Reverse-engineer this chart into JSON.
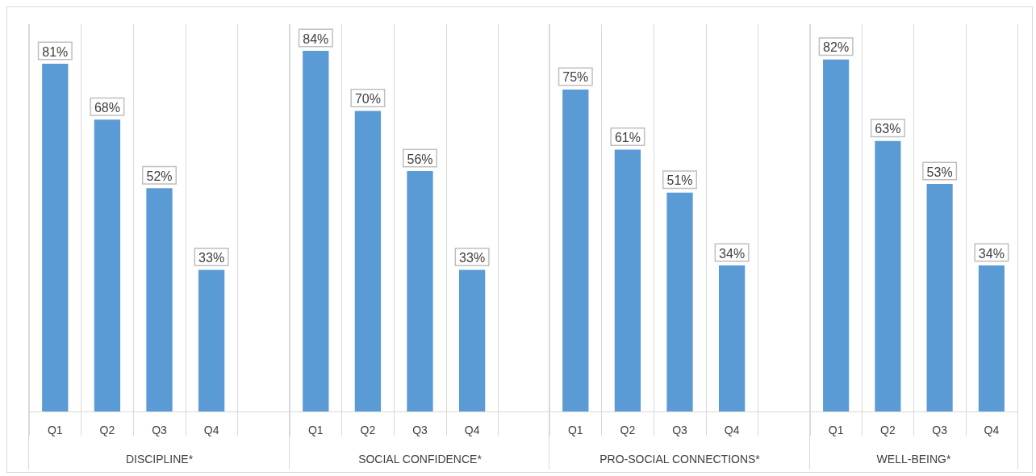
{
  "chart_data": [
    {
      "type": "bar",
      "xlabel": "DISCIPLINE*",
      "categories": [
        "Q1",
        "Q2",
        "Q3",
        "Q4",
        null
      ],
      "values": [
        81,
        68,
        52,
        33,
        null
      ],
      "value_labels": [
        "81%",
        "68%",
        "52%",
        "33%",
        null
      ],
      "color": "#5b9bd5",
      "grid": "x",
      "tick_labels": "x"
    },
    {
      "type": "bar",
      "xlabel": "SOCIAL CONFIDENCE*",
      "categories": [
        "Q1",
        "Q2",
        "Q3",
        "Q4",
        null
      ],
      "values": [
        84,
        70,
        56,
        33,
        null
      ],
      "value_labels": [
        "84%",
        "70%",
        "56%",
        "33%",
        null
      ],
      "color": "#5b9bd5",
      "grid": "x",
      "tick_labels": "x"
    },
    {
      "type": "bar",
      "xlabel": "PRO-SOCIAL CONNECTIONS*",
      "categories": [
        "Q1",
        "Q2",
        "Q3",
        "Q4",
        null
      ],
      "values": [
        75,
        61,
        51,
        34,
        null
      ],
      "value_labels": [
        "75%",
        "61%",
        "51%",
        "34%",
        null
      ],
      "color": "#5b9bd5",
      "grid": "x",
      "tick_labels": "x"
    },
    {
      "type": "bar",
      "xlabel": "WELL-BEING*",
      "categories": [
        "Q1",
        "Q2",
        "Q3",
        "Q4"
      ],
      "values": [
        82,
        63,
        53,
        34
      ],
      "value_labels": [
        "82%",
        "63%",
        "53%",
        "34%"
      ],
      "color": "#5b9bd5",
      "grid": "x",
      "tick_labels": "x"
    }
  ]
}
